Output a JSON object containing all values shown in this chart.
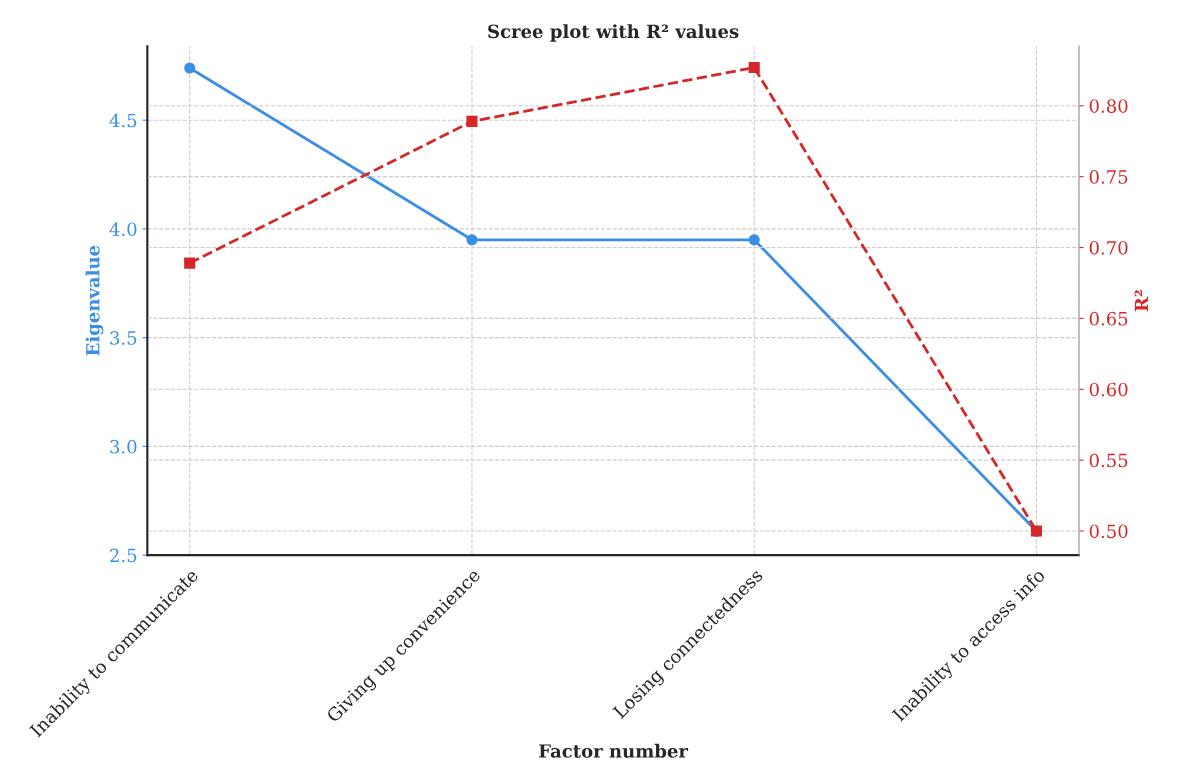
{
  "chart_data": {
    "type": "line",
    "title": "Scree plot with R² values",
    "xlabel": "Factor number",
    "ylabel": "Eigenvalue",
    "y2label": "R²",
    "categories": [
      "Inability to communicate",
      "Giving up convenience",
      "Losing connectedness",
      "Inability to access info"
    ],
    "series": [
      {
        "color": "#3a8ee6",
        "values": [
          4.74,
          3.95,
          3.95,
          2.61
        ],
        "marker": "circle",
        "line_style": "solid"
      },
      {
        "color": "#d62728",
        "values": [
          0.689,
          0.789,
          0.827,
          0.5
        ],
        "marker": "square",
        "line_style": "dashed",
        "axis": "y2"
      }
    ],
    "ylim": [
      2.5,
      4.84
    ],
    "yticks": [
      2.5,
      {
        "value": 3,
        "label": "3.0"
      },
      3.5,
      {
        "value": 4,
        "label": "4.0"
      },
      4.5
    ],
    "y2lim": [
      0.483,
      0.842
    ],
    "y2ticks": [
      {
        "value": 0.5,
        "label": "0.50"
      },
      0.55,
      {
        "value": 0.6,
        "label": "0.60"
      },
      0.65,
      {
        "value": 0.7,
        "label": "0.70"
      },
      0.75,
      {
        "value": 0.8,
        "label": "0.80"
      }
    ],
    "grid": true,
    "legend": false
  }
}
